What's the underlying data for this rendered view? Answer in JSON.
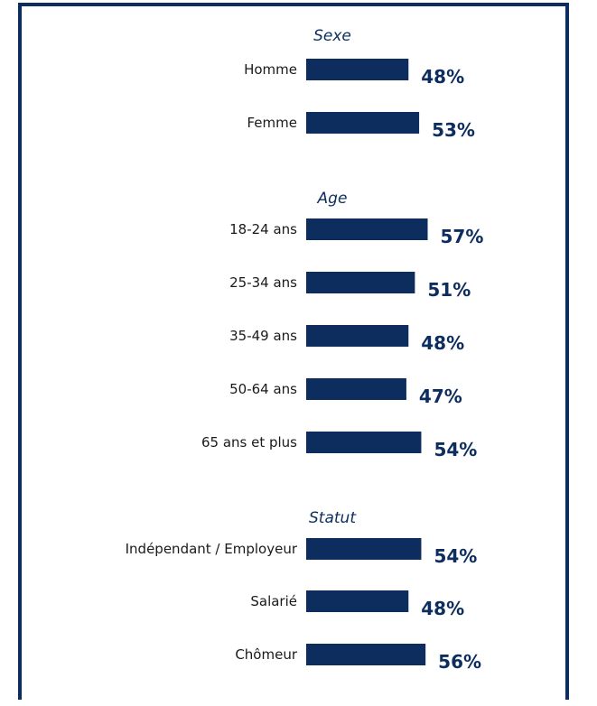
{
  "colors": {
    "bar": "#0c2d5e",
    "frame": "#0c2d5e",
    "label": "#1a1a1a"
  },
  "chart_data": {
    "type": "bar",
    "orientation": "horizontal",
    "groups": [
      {
        "title": "Sexe",
        "items": [
          {
            "label": "Homme",
            "value": 48,
            "display": "48%"
          },
          {
            "label": "Femme",
            "value": 53,
            "display": "53%"
          }
        ]
      },
      {
        "title": "Age",
        "items": [
          {
            "label": "18-24 ans",
            "value": 57,
            "display": "57%"
          },
          {
            "label": "25-34 ans",
            "value": 51,
            "display": "51%"
          },
          {
            "label": "35-49 ans",
            "value": 48,
            "display": "48%"
          },
          {
            "label": "50-64 ans",
            "value": 47,
            "display": "47%"
          },
          {
            "label": "65 ans et plus",
            "value": 54,
            "display": "54%"
          }
        ]
      },
      {
        "title": "Statut",
        "items": [
          {
            "label": "Indépendant / Employeur",
            "value": 54,
            "display": "54%"
          },
          {
            "label": "Salarié",
            "value": 48,
            "display": "48%"
          },
          {
            "label": "Chômeur",
            "value": 56,
            "display": "56%"
          }
        ]
      }
    ]
  }
}
